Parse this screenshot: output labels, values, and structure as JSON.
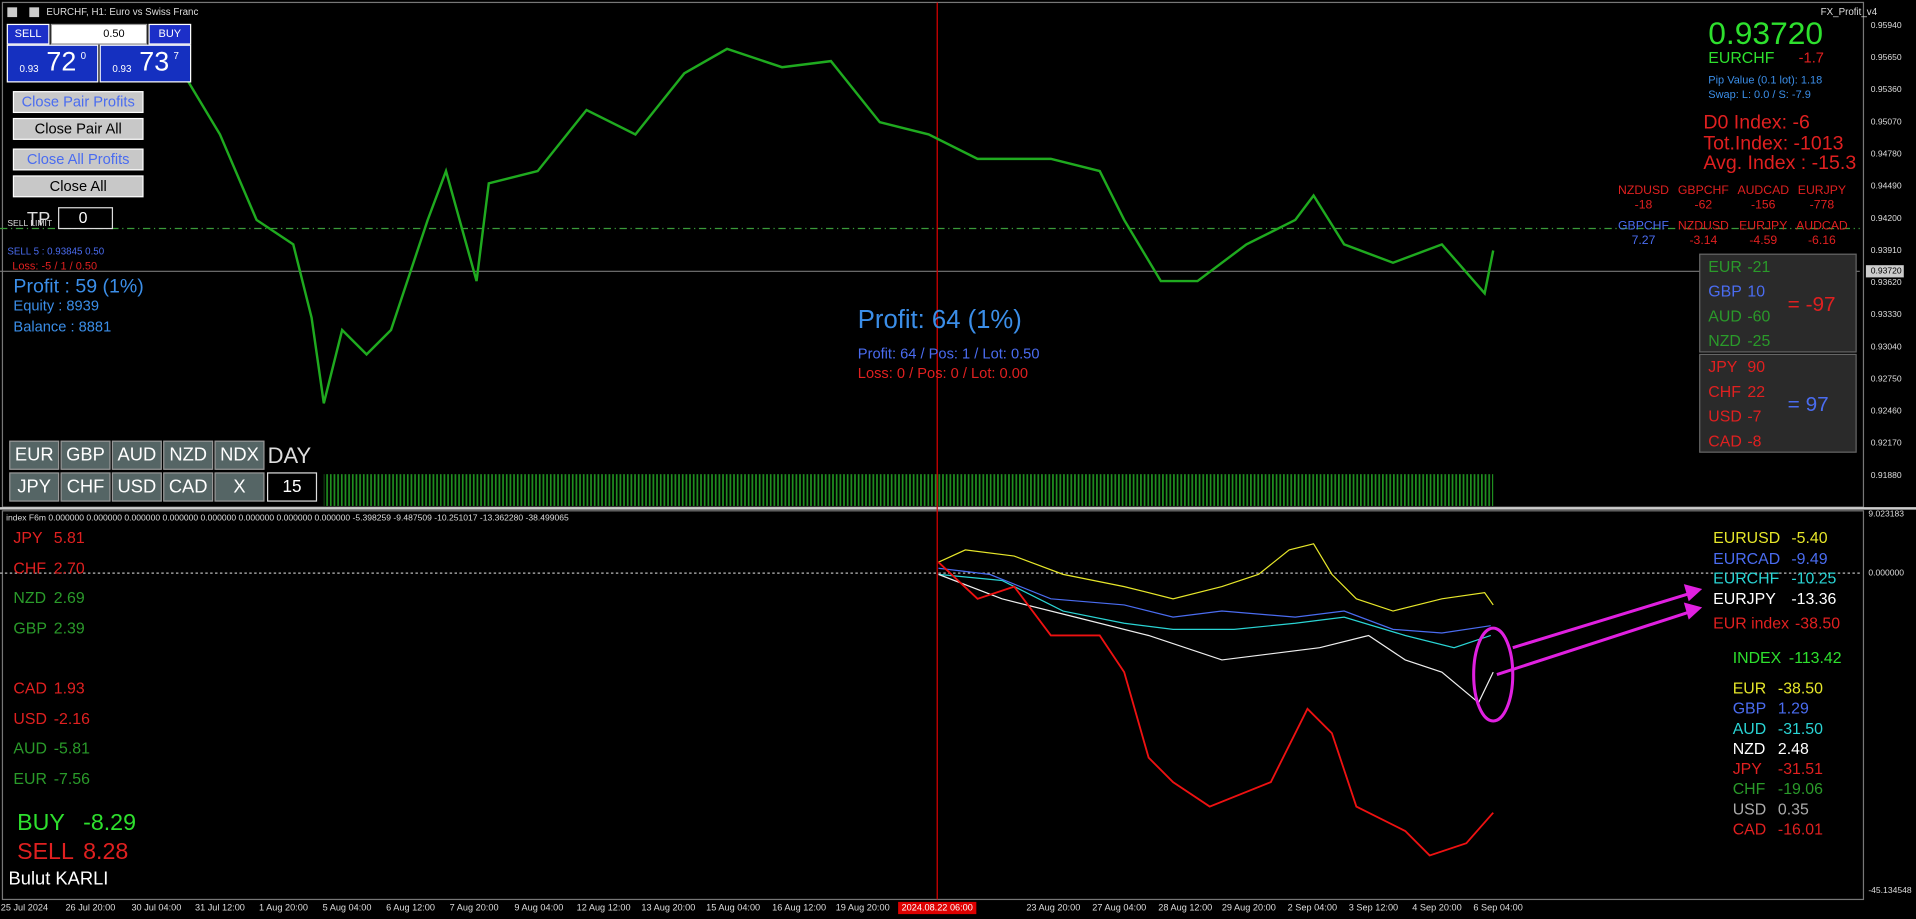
{
  "header": {
    "title": "EURCHF, H1: Euro vs Swiss Franc",
    "indicator": "FX_Profit_v4"
  },
  "trade_panel": {
    "sell": "SELL",
    "buy": "BUY",
    "lot": "0.50",
    "sell_prefix": "0.93",
    "sell_big": "72",
    "sell_sup": "0",
    "buy_prefix": "0.93",
    "buy_big": "73",
    "buy_sup": "7"
  },
  "buttons": [
    "Close Pair Profits",
    "Close Pair All",
    "Close All Profits",
    "Close All"
  ],
  "tp": {
    "label": "TP",
    "value": "0"
  },
  "orders": [
    "SELL LIMIT",
    "SELL 5 : 0.93845 0.50",
    "Loss: -5 / 1 / 0.50"
  ],
  "account": [
    "Profit : 59 (1%)",
    "Equity : 8939",
    "Balance : 8881"
  ],
  "center": {
    "profit": "Profit: 64 (1%)",
    "line1": "Profit: 64 / Pos: 1 / Lot: 0.50",
    "line2": "Loss: 0 / Pos: 0 / Lot: 0.00"
  },
  "symbol_info": {
    "price": "0.93720",
    "symbol": "EURCHF",
    "change": "-1.7",
    "pip_value": "Pip Value (0.1 lot): 1.18",
    "swap": "Swap: L: 0.0 / S: -7.9"
  },
  "index_info": [
    "D0 Index: -6",
    "Tot.Index: -1013",
    "Avg. Index : -15.3"
  ],
  "pair_table": {
    "rows": [
      [
        [
          "NZDUSD",
          "-18"
        ],
        [
          "GBPCHF",
          "-62"
        ],
        [
          "AUDCAD",
          "-156"
        ],
        [
          "EURJPY",
          "-778"
        ]
      ],
      [
        [
          "GBPCHF",
          "7.27"
        ],
        [
          "NZDUSD",
          "-3.14"
        ],
        [
          "EURJPY",
          "-4.59"
        ],
        [
          "AUDCAD",
          "-6.16"
        ]
      ]
    ]
  },
  "strength": [
    {
      "items": [
        [
          "EUR",
          "-21"
        ],
        [
          "GBP",
          "10"
        ],
        [
          "AUD",
          "-60"
        ],
        [
          "NZD",
          "-25"
        ]
      ],
      "total": "= -97"
    },
    {
      "items": [
        [
          "JPY",
          "90"
        ],
        [
          "CHF",
          "22"
        ],
        [
          "USD",
          "-7"
        ],
        [
          "CAD",
          "-8"
        ]
      ],
      "total": "= 97"
    }
  ],
  "currency_buttons": [
    [
      "EUR",
      "GBP",
      "AUD",
      "NZD",
      "NDX"
    ],
    [
      "JPY",
      "CHF",
      "USD",
      "CAD",
      "X"
    ]
  ],
  "period": {
    "label": "DAY",
    "value": "15"
  },
  "price_axis": {
    "labels": [
      "0.95940",
      "0.95650",
      "0.95360",
      "0.95070",
      "0.94780",
      "0.94490",
      "0.94200",
      "0.93910",
      "0.93620",
      "0.93330",
      "0.93040",
      "0.92750",
      "0.92460",
      "0.92170",
      "0.91880"
    ],
    "current": "0.93720"
  },
  "indicator": {
    "label": "index F6m 0.000000 0.000000 0.000000 0.000000 0.000000 0.000000 0.000000 0.000000 -5.398259 -9.487509 -10.251017 -13.362280 -38.499065",
    "axis": [
      "9.023183",
      "0.000000",
      "-45.134548"
    ]
  },
  "left_list": [
    [
      "JPY",
      "5.81"
    ],
    [
      "CHF",
      "2.70"
    ],
    [
      "NZD",
      "2.69"
    ],
    [
      "GBP",
      "2.39"
    ],
    [
      "CAD",
      "1.93"
    ],
    [
      "USD",
      "-2.16"
    ],
    [
      "AUD",
      "-5.81"
    ],
    [
      "EUR",
      "-7.56"
    ]
  ],
  "signals": {
    "buy": [
      "BUY",
      "-8.29"
    ],
    "sell": [
      "SELL",
      "8.28"
    ],
    "author": "Bulut KARLI"
  },
  "right_pairs": [
    [
      "EURUSD",
      "-5.40"
    ],
    [
      "EURCAD",
      "-9.49"
    ],
    [
      "EURCHF",
      "-10.25"
    ],
    [
      "EURJPY",
      "-13.36"
    ],
    [
      "EUR index",
      "-38.50"
    ]
  ],
  "index_total": [
    "INDEX",
    "-113.42"
  ],
  "right_list": [
    [
      "EUR",
      "-38.50"
    ],
    [
      "GBP",
      "1.29"
    ],
    [
      "AUD",
      "-31.50"
    ],
    [
      "NZD",
      "2.48"
    ],
    [
      "JPY",
      "-31.51"
    ],
    [
      "CHF",
      "-19.06"
    ],
    [
      "USD",
      "0.35"
    ],
    [
      "CAD",
      "-16.01"
    ]
  ],
  "time_axis": [
    "25 Jul 2024",
    "26 Jul 20:00",
    "30 Jul 04:00",
    "31 Jul 12:00",
    "1 Aug 20:00",
    "5 Aug 04:00",
    "6 Aug 12:00",
    "7 Aug 20:00",
    "9 Aug 04:00",
    "12 Aug 12:00",
    "13 Aug 20:00",
    "15 Aug 04:00",
    "16 Aug 12:00",
    "19 Aug 20:00",
    "23 Aug 20:00",
    "27 Aug 04:00",
    "28 Aug 12:00",
    "29 Aug 20:00",
    "2 Sep 04:00",
    "3 Sep 12:00",
    "4 Sep 20:00",
    "6 Sep 04:00"
  ],
  "cursor_time": "2024.08.22 06:00"
}
